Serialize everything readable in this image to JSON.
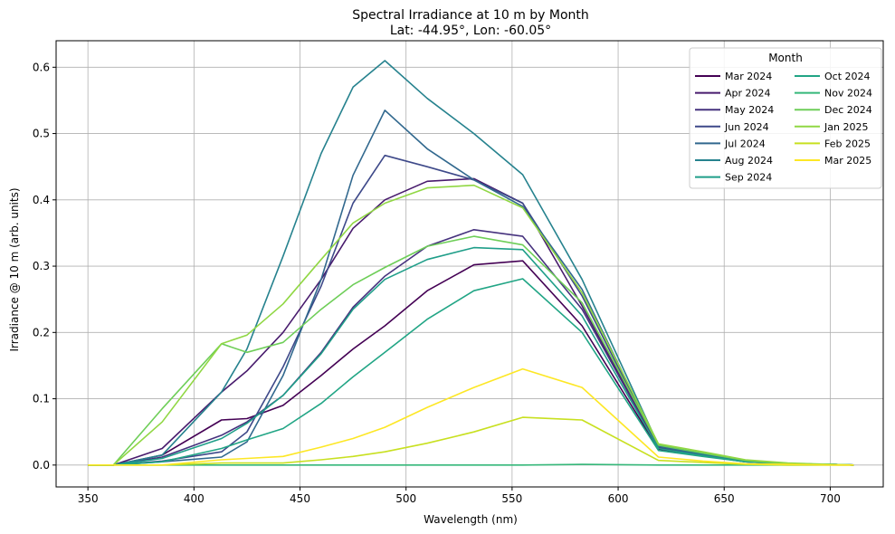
{
  "chart_data": {
    "type": "line",
    "title": "Spectral Irradiance at 10 m by Month",
    "subtitle": "Lat: -44.95°, Lon: -60.05°",
    "xlabel": "Wavelength (nm)",
    "ylabel": "Irradiance @ 10 m (arb. units)",
    "xlim": [
      335,
      725
    ],
    "ylim": [
      -0.033,
      0.64
    ],
    "xticks": [
      350,
      400,
      450,
      500,
      550,
      600,
      650,
      700
    ],
    "yticks": [
      0.0,
      0.1,
      0.2,
      0.3,
      0.4,
      0.5,
      0.6
    ],
    "grid": true,
    "legend": {
      "title": "Month",
      "position": "top-right",
      "columns": 2
    },
    "x": [
      350,
      362,
      385,
      413,
      425,
      442,
      460,
      475,
      490,
      510,
      532,
      555,
      583,
      619,
      640,
      660,
      680,
      700,
      711
    ],
    "series": [
      {
        "name": "Mar 2024",
        "color": "#440154",
        "values": [
          0.0,
          0.0,
          0.015,
          0.068,
          0.07,
          0.09,
          0.135,
          0.175,
          0.21,
          0.263,
          0.302,
          0.308,
          0.21,
          0.024,
          0.014,
          0.005,
          0.002,
          0.001,
          0.0
        ]
      },
      {
        "name": "Apr 2024",
        "color": "#481b6d",
        "values": [
          0.0,
          0.0,
          0.025,
          0.11,
          0.142,
          0.2,
          0.28,
          0.357,
          0.4,
          0.428,
          0.432,
          0.395,
          0.24,
          0.027,
          0.016,
          0.006,
          0.002,
          0.001,
          0.0
        ]
      },
      {
        "name": "May 2024",
        "color": "#46327e",
        "values": [
          0.0,
          0.0,
          0.012,
          0.045,
          0.065,
          0.105,
          0.17,
          0.238,
          0.285,
          0.33,
          0.355,
          0.345,
          0.235,
          0.026,
          0.015,
          0.005,
          0.002,
          0.001,
          0.0
        ]
      },
      {
        "name": "Jun 2024",
        "color": "#3e4989",
        "values": [
          0.0,
          0.0,
          0.006,
          0.02,
          0.05,
          0.148,
          0.27,
          0.395,
          0.467,
          0.45,
          0.43,
          0.395,
          0.255,
          0.028,
          0.016,
          0.006,
          0.002,
          0.001,
          0.0
        ]
      },
      {
        "name": "Jul 2024",
        "color": "#31688e",
        "values": [
          0.0,
          0.0,
          0.005,
          0.012,
          0.035,
          0.135,
          0.28,
          0.437,
          0.535,
          0.477,
          0.43,
          0.39,
          0.265,
          0.028,
          0.016,
          0.006,
          0.002,
          0.001,
          0.0
        ]
      },
      {
        "name": "Aug 2024",
        "color": "#26828e",
        "values": [
          0.0,
          0.0,
          0.015,
          0.11,
          0.175,
          0.315,
          0.47,
          0.57,
          0.61,
          0.553,
          0.5,
          0.438,
          0.28,
          0.03,
          0.017,
          0.007,
          0.002,
          0.001,
          0.0
        ]
      },
      {
        "name": "Sep 2024",
        "color": "#1f9e89",
        "values": [
          0.0,
          0.0,
          0.01,
          0.04,
          0.063,
          0.105,
          0.168,
          0.235,
          0.28,
          0.31,
          0.328,
          0.325,
          0.225,
          0.025,
          0.014,
          0.005,
          0.002,
          0.001,
          0.0
        ]
      },
      {
        "name": "Oct 2024",
        "color": "#21a585",
        "values": [
          0.0,
          0.0,
          0.005,
          0.025,
          0.038,
          0.055,
          0.093,
          0.133,
          0.17,
          0.22,
          0.263,
          0.281,
          0.2,
          0.022,
          0.013,
          0.005,
          0.002,
          0.001,
          0.0
        ]
      },
      {
        "name": "Nov 2024",
        "color": "#35b779",
        "values": [
          0.0,
          0.0,
          0.0,
          0.0,
          0.0,
          0.0,
          0.0,
          0.0,
          0.0,
          0.0,
          0.0,
          0.0,
          0.001,
          0.0,
          0.0,
          0.0,
          0.0,
          0.0,
          0.0
        ]
      },
      {
        "name": "Dec 2024",
        "color": "#6ece58",
        "values": [
          0.0,
          0.0,
          0.085,
          0.183,
          0.17,
          0.185,
          0.235,
          0.272,
          0.298,
          0.33,
          0.345,
          0.332,
          0.245,
          0.03,
          0.018,
          0.007,
          0.002,
          0.001,
          0.0
        ]
      },
      {
        "name": "Jan 2025",
        "color": "#90d743",
        "values": [
          0.0,
          0.0,
          0.065,
          0.183,
          0.196,
          0.243,
          0.31,
          0.365,
          0.395,
          0.418,
          0.422,
          0.388,
          0.26,
          0.032,
          0.02,
          0.008,
          0.003,
          0.001,
          0.0
        ]
      },
      {
        "name": "Feb 2025",
        "color": "#c8e020",
        "values": [
          0.0,
          0.0,
          0.0,
          0.003,
          0.003,
          0.003,
          0.008,
          0.013,
          0.02,
          0.033,
          0.05,
          0.072,
          0.068,
          0.007,
          0.004,
          0.001,
          0.0,
          0.0,
          0.0
        ]
      },
      {
        "name": "Mar 2025",
        "color": "#fde725",
        "values": [
          0.0,
          0.0,
          0.0,
          0.008,
          0.01,
          0.013,
          0.027,
          0.04,
          0.057,
          0.087,
          0.117,
          0.145,
          0.117,
          0.012,
          0.006,
          0.002,
          0.001,
          0.0,
          0.0
        ]
      }
    ]
  }
}
